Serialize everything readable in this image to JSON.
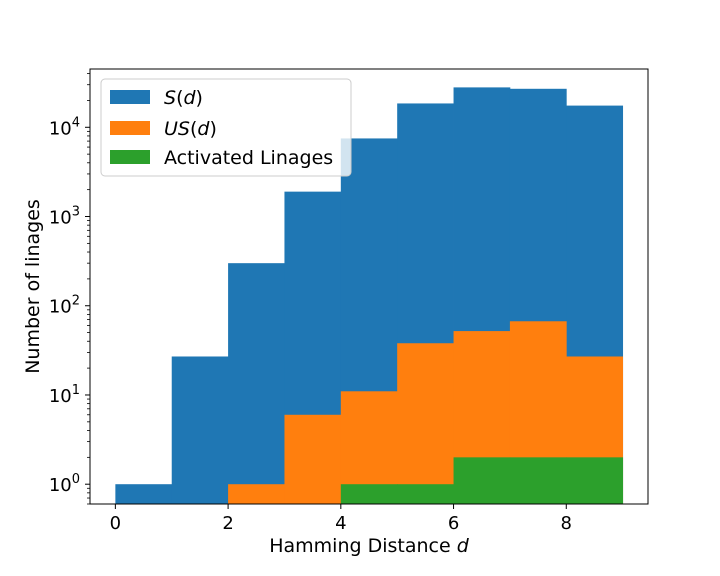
{
  "chart_data": {
    "type": "bar",
    "scale_y": "log",
    "xlabel": "Hamming Distance",
    "xlabel_var": "d",
    "ylabel": "Number of linages",
    "xlim": [
      -0.45,
      9.45
    ],
    "ylim": [
      0.6,
      45000
    ],
    "x_ticks": [
      0,
      2,
      4,
      6,
      8
    ],
    "y_ticks": [
      {
        "value": 1,
        "base": "10",
        "exp": "0"
      },
      {
        "value": 10,
        "base": "10",
        "exp": "1"
      },
      {
        "value": 100,
        "base": "10",
        "exp": "2"
      },
      {
        "value": 1000,
        "base": "10",
        "exp": "3"
      },
      {
        "value": 10000,
        "base": "10",
        "exp": "4"
      }
    ],
    "bin_edges": [
      0,
      1,
      2,
      3,
      4,
      5,
      6,
      7,
      8,
      9
    ],
    "legend_position": "upper left",
    "series": [
      {
        "name": "S(d)",
        "name_main": "S",
        "name_arg": "d",
        "color": "#1f77b4",
        "values": [
          1,
          27,
          300,
          1900,
          7500,
          18500,
          28000,
          27000,
          17500
        ]
      },
      {
        "name": "US(d)",
        "name_main": "US",
        "name_arg": "d",
        "color": "#ff7f0e",
        "values": [
          0,
          0,
          1,
          6,
          11,
          38,
          52,
          67,
          27
        ]
      },
      {
        "name": "Activated Linages",
        "color": "#2ca02c",
        "values": [
          0,
          0,
          0,
          0,
          1,
          1,
          2,
          2,
          2
        ]
      }
    ]
  }
}
